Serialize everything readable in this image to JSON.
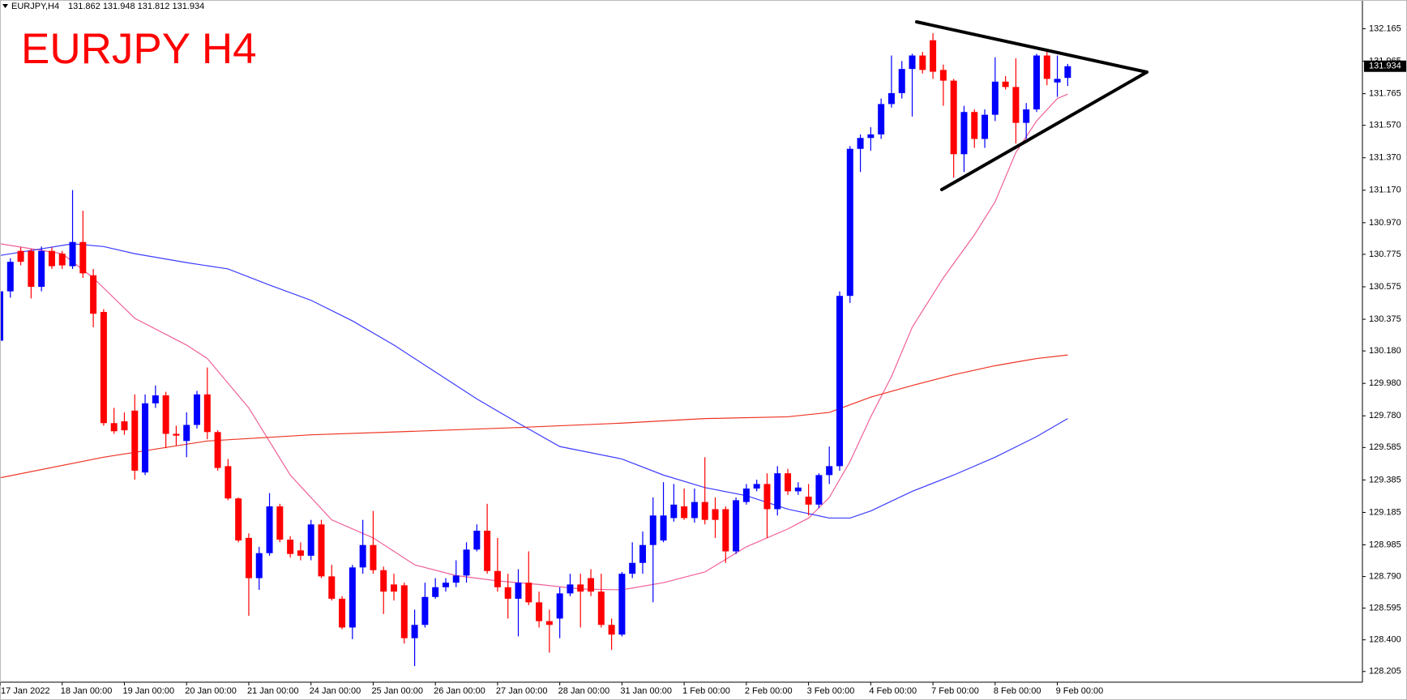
{
  "chart_data": {
    "type": "candlestick",
    "title": "EURJPY H4",
    "symbol": "EURJPY,H4",
    "header_values": "131.862 131.948 131.812 131.934",
    "current_price": 131.934,
    "up_color": "#0000ff",
    "down_color": "#ff0000",
    "title_color": "#ff0000",
    "grid": false,
    "ylim": [
      128.139,
      132.342
    ],
    "yticks": [
      132.165,
      131.965,
      131.765,
      {
        "value": 131.57,
        "label": "131.570"
      },
      {
        "value": 131.37,
        "label": "131.370"
      },
      {
        "value": 131.17,
        "label": "131.170"
      },
      {
        "value": 130.97,
        "label": "130.970"
      },
      130.775,
      130.575,
      130.375,
      {
        "value": 130.18,
        "label": "130.180"
      },
      {
        "value": 129.98,
        "label": "129.980"
      },
      {
        "value": 129.78,
        "label": "129.780"
      },
      129.585,
      129.385,
      129.185,
      128.985,
      {
        "value": 128.79,
        "label": "128.790"
      },
      128.595,
      {
        "value": 128.4,
        "label": "128.400"
      },
      128.205
    ],
    "categories": [
      "17 Jan 2022",
      null,
      null,
      null,
      null,
      null,
      "18 Jan 00:00",
      null,
      null,
      null,
      null,
      null,
      "19 Jan 00:00",
      null,
      null,
      null,
      null,
      null,
      "20 Jan 00:00",
      null,
      null,
      null,
      null,
      null,
      "21 Jan 00:00",
      null,
      null,
      null,
      null,
      null,
      "24 Jan 00:00",
      null,
      null,
      null,
      null,
      null,
      "25 Jan 00:00",
      null,
      null,
      null,
      null,
      null,
      "26 Jan 00:00",
      null,
      null,
      null,
      null,
      null,
      "27 Jan 00:00",
      null,
      null,
      null,
      null,
      null,
      "28 Jan 00:00",
      null,
      null,
      null,
      null,
      null,
      "31 Jan 00:00",
      null,
      null,
      null,
      null,
      null,
      "1 Feb 00:00",
      null,
      null,
      null,
      null,
      null,
      "2 Feb 00:00",
      null,
      null,
      null,
      null,
      null,
      "3 Feb 00:00",
      null,
      null,
      null,
      null,
      null,
      "4 Feb 00:00",
      null,
      null,
      null,
      null,
      null,
      "7 Feb 00:00",
      null,
      null,
      null,
      null,
      null,
      "8 Feb 00:00",
      null,
      null,
      null,
      null,
      null,
      "9 Feb 00:00",
      null
    ],
    "open": [
      130.243,
      130.547,
      130.796,
      130.796,
      130.575,
      130.796,
      130.779,
      130.702,
      130.851,
      130.646,
      130.42,
      129.735,
      129.746,
      129.812,
      129.431,
      129.857,
      129.906,
      129.669,
      129.625,
      129.724,
      129.912,
      129.68,
      129.47,
      129.271,
      129.028,
      128.78,
      128.934,
      129.222,
      129.017,
      128.951,
      128.918,
      129.111,
      128.791,
      128.653,
      128.476,
      128.846,
      128.984,
      128.829,
      128.741,
      128.736,
      128.41,
      128.492,
      128.664,
      128.724,
      128.752,
      128.796,
      128.956,
      129.072,
      128.824,
      128.724,
      128.653,
      128.752,
      128.631,
      128.515,
      128.531,
      128.686,
      128.741,
      128.78,
      128.697,
      128.492,
      128.432,
      128.807,
      128.874,
      128.984,
      129.012,
      129.15,
      129.222,
      129.15,
      129.249,
      129.205,
      129.205,
      128.945,
      129.249,
      129.332,
      129.36,
      129.205,
      129.426,
      129.315,
      129.282,
      129.233,
      129.415,
      129.47,
      130.519,
      131.425,
      131.492,
      131.514,
      131.701,
      131.768,
      131.917,
      132.0,
      132.094,
      131.911,
      131.845,
      131.392,
      131.652,
      131.486,
      131.635,
      131.839,
      131.806,
      131.585,
      131.668,
      132.0,
      131.834,
      131.862
    ],
    "high": [
      130.575,
      130.751,
      130.818,
      130.807,
      130.823,
      130.818,
      130.796,
      131.171,
      131.044,
      130.685,
      130.437,
      129.829,
      129.801,
      129.912,
      129.912,
      129.967,
      129.928,
      129.719,
      129.801,
      129.934,
      130.078,
      129.691,
      129.514,
      129.277,
      129.056,
      128.973,
      129.304,
      129.238,
      129.039,
      129.001,
      129.139,
      129.139,
      128.862,
      128.669,
      128.862,
      129.139,
      129.194,
      128.851,
      128.807,
      128.752,
      128.586,
      128.752,
      128.78,
      128.78,
      128.89,
      129.001,
      129.111,
      129.238,
      129.028,
      128.807,
      128.835,
      128.945,
      128.697,
      128.586,
      128.724,
      128.807,
      128.807,
      128.835,
      128.807,
      128.531,
      128.818,
      129.001,
      129.067,
      129.277,
      129.371,
      129.36,
      129.332,
      129.332,
      129.525,
      129.277,
      129.222,
      129.277,
      129.36,
      129.387,
      129.426,
      129.47,
      129.453,
      129.371,
      129.36,
      129.426,
      129.591,
      130.547,
      131.442,
      131.514,
      131.558,
      131.735,
      132.0,
      131.966,
      132.011,
      132.022,
      132.138,
      131.944,
      131.856,
      131.69,
      131.668,
      131.668,
      131.989,
      131.873,
      131.983,
      131.707,
      132.011,
      132.022,
      132.0,
      131.948
    ],
    "low": [
      130.216,
      130.508,
      130.707,
      130.503,
      130.547,
      130.685,
      130.685,
      130.685,
      130.63,
      130.326,
      129.719,
      129.669,
      129.663,
      129.387,
      129.415,
      129.829,
      129.581,
      129.597,
      129.525,
      129.702,
      129.636,
      129.442,
      129.26,
      129.001,
      128.548,
      128.708,
      128.918,
      129.001,
      128.907,
      128.89,
      128.89,
      128.78,
      128.642,
      128.465,
      128.404,
      128.807,
      128.807,
      128.559,
      128.642,
      128.377,
      128.238,
      128.476,
      128.653,
      128.697,
      128.724,
      128.752,
      128.945,
      128.807,
      128.697,
      128.531,
      128.421,
      128.614,
      128.476,
      128.321,
      128.41,
      128.669,
      128.476,
      128.669,
      128.476,
      128.338,
      128.421,
      128.78,
      128.807,
      128.631,
      129.001,
      129.128,
      129.139,
      129.122,
      129.111,
      129.028,
      128.874,
      128.929,
      129.233,
      129.315,
      129.028,
      129.166,
      129.293,
      129.293,
      129.166,
      129.211,
      129.36,
      129.442,
      130.475,
      131.282,
      131.414,
      131.486,
      131.679,
      131.735,
      131.624,
      131.889,
      131.856,
      131.69,
      131.248,
      131.282,
      131.431,
      131.431,
      131.596,
      131.79,
      131.458,
      131.486,
      131.652,
      131.817,
      131.745,
      131.812
    ],
    "close": [
      130.547,
      130.729,
      130.729,
      130.575,
      130.796,
      130.702,
      130.707,
      130.851,
      130.658,
      130.409,
      129.735,
      129.685,
      129.691,
      129.442,
      129.857,
      129.906,
      129.669,
      129.658,
      129.724,
      129.912,
      129.68,
      129.459,
      129.271,
      129.012,
      128.78,
      128.934,
      129.222,
      129.017,
      128.929,
      128.918,
      129.111,
      128.791,
      128.653,
      128.476,
      128.846,
      128.984,
      128.829,
      128.697,
      128.697,
      128.41,
      128.492,
      128.664,
      128.724,
      128.752,
      128.796,
      128.956,
      129.072,
      128.824,
      128.724,
      128.653,
      128.752,
      128.631,
      128.515,
      128.492,
      128.686,
      128.741,
      128.697,
      128.697,
      128.492,
      128.432,
      128.807,
      128.874,
      128.984,
      129.166,
      129.166,
      129.233,
      129.15,
      129.249,
      129.139,
      129.139,
      128.945,
      129.26,
      129.332,
      129.36,
      129.205,
      129.426,
      129.315,
      129.338,
      129.233,
      129.415,
      129.47,
      130.519,
      131.425,
      131.492,
      131.514,
      131.701,
      131.768,
      131.917,
      132.0,
      131.911,
      131.9,
      131.845,
      131.392,
      131.652,
      131.486,
      131.635,
      131.839,
      131.806,
      131.585,
      131.668,
      132.0,
      131.856,
      131.856,
      131.934
    ],
    "overlays": [
      {
        "color": "#f0609a",
        "x": [
          0,
          6,
          9,
          13,
          18,
          20,
          24,
          28,
          32,
          36,
          40,
          44,
          48,
          52,
          56,
          60,
          64,
          68,
          72,
          76,
          78,
          80,
          82,
          84,
          86,
          88,
          91,
          94,
          96,
          98,
          100,
          102,
          103
        ],
        "values": [
          130.84,
          130.779,
          130.63,
          130.381,
          130.216,
          130.133,
          129.829,
          129.415,
          129.139,
          129.028,
          128.862,
          128.796,
          128.763,
          128.741,
          128.713,
          128.708,
          128.752,
          128.818,
          128.973,
          129.083,
          129.15,
          129.277,
          129.498,
          129.774,
          130.022,
          130.326,
          130.63,
          130.895,
          131.099,
          131.403,
          131.597,
          131.735,
          131.762
        ]
      },
      {
        "color": "#3c3cff",
        "x": [
          0,
          7,
          10,
          13,
          18,
          22,
          26,
          30,
          34,
          38,
          42,
          46,
          50,
          54,
          60,
          64,
          68,
          72,
          76,
          80,
          82,
          84,
          88,
          92,
          96,
          100,
          103
        ],
        "values": [
          130.768,
          130.84,
          130.823,
          130.779,
          130.724,
          130.685,
          130.586,
          130.492,
          130.365,
          130.216,
          130.05,
          129.884,
          129.735,
          129.591,
          129.514,
          129.415,
          129.338,
          129.288,
          129.205,
          129.15,
          129.15,
          129.194,
          129.315,
          129.415,
          129.525,
          129.652,
          129.763
        ]
      },
      {
        "color": "#ee3322",
        "x": [
          0,
          10,
          20,
          30,
          40,
          50,
          60,
          68,
          76,
          80,
          84,
          88,
          92,
          96,
          100,
          103
        ],
        "values": [
          129.398,
          129.525,
          129.625,
          129.663,
          129.685,
          129.708,
          129.735,
          129.763,
          129.774,
          129.801,
          129.895,
          129.967,
          130.033,
          130.089,
          130.133,
          130.155
        ]
      }
    ]
  }
}
